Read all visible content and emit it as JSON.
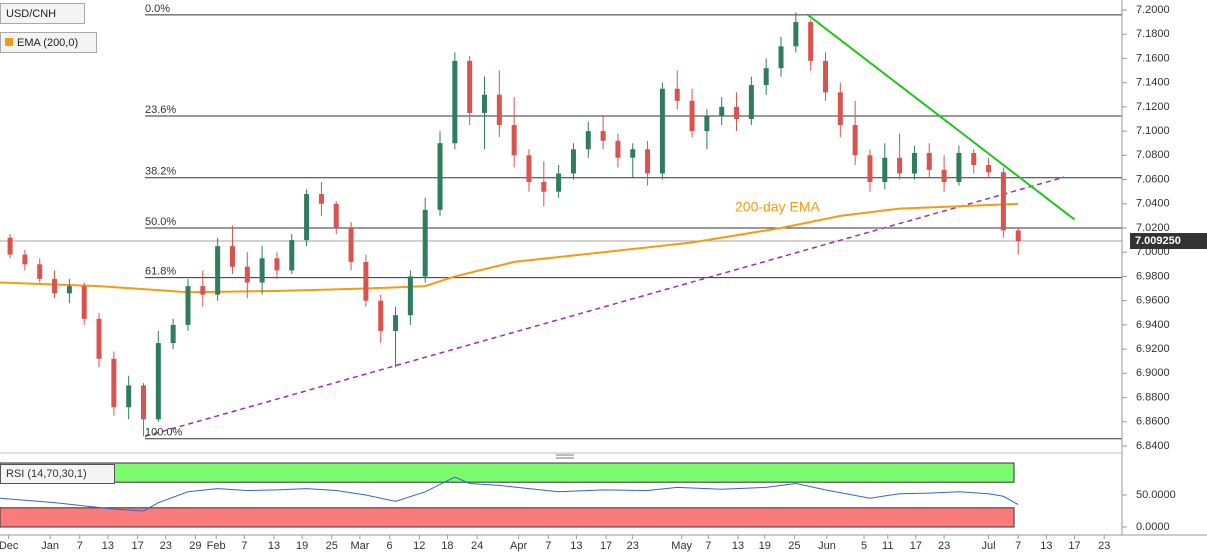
{
  "chart_data": {
    "type": "candlestick",
    "title": "USD/CNH",
    "indicator_label": "EMA (200,0)",
    "annotation": "200-day EMA",
    "up_color": "#2f7d5c",
    "down_color": "#d9534f",
    "xlim": [
      -0.68,
      75
    ],
    "ylim": [
      6.84,
      7.2
    ],
    "yticks": [
      {
        "value": 7.2,
        "label": "7.2000"
      },
      {
        "value": 7.18,
        "label": "7.1800"
      },
      {
        "value": 7.16,
        "label": "7.1600"
      },
      {
        "value": 7.14,
        "label": "7.1400"
      },
      {
        "value": 7.12,
        "label": "7.1200"
      },
      {
        "value": 7.1,
        "label": "7.1000"
      },
      {
        "value": 7.08,
        "label": "7.0800"
      },
      {
        "value": 7.06,
        "label": "7.0600"
      },
      {
        "value": 7.04,
        "label": "7.0400"
      },
      {
        "value": 7.02,
        "label": "7.0200"
      },
      {
        "value": 7.0,
        "label": "7.0000"
      },
      {
        "value": 6.98,
        "label": "6.9800"
      },
      {
        "value": 6.96,
        "label": "6.9600"
      },
      {
        "value": 6.94,
        "label": "6.9400"
      },
      {
        "value": 6.92,
        "label": "6.9200"
      },
      {
        "value": 6.9,
        "label": "6.9000"
      },
      {
        "value": 6.88,
        "label": "6.8800"
      },
      {
        "value": 6.86,
        "label": "6.8600"
      },
      {
        "value": 6.84,
        "label": "6.8400"
      }
    ],
    "xticks": [
      {
        "value": -0.1,
        "label": "Dec"
      },
      {
        "value": 2.7,
        "label": "Jan"
      },
      {
        "value": 4.7,
        "label": "7"
      },
      {
        "value": 6.6,
        "label": "13"
      },
      {
        "value": 8.6,
        "label": "17"
      },
      {
        "value": 10.5,
        "label": "23"
      },
      {
        "value": 12.5,
        "label": "29"
      },
      {
        "value": 13.9,
        "label": "Feb"
      },
      {
        "value": 15.8,
        "label": "7"
      },
      {
        "value": 17.8,
        "label": "13"
      },
      {
        "value": 19.7,
        "label": "19"
      },
      {
        "value": 21.7,
        "label": "25"
      },
      {
        "value": 23.6,
        "label": "Mar"
      },
      {
        "value": 25.6,
        "label": "6"
      },
      {
        "value": 27.6,
        "label": "12"
      },
      {
        "value": 29.5,
        "label": "18"
      },
      {
        "value": 31.5,
        "label": "24"
      },
      {
        "value": 34.3,
        "label": "Apr"
      },
      {
        "value": 36.3,
        "label": "7"
      },
      {
        "value": 38.2,
        "label": "13"
      },
      {
        "value": 40.2,
        "label": "17"
      },
      {
        "value": 42.0,
        "label": "23"
      },
      {
        "value": 45.3,
        "label": "May"
      },
      {
        "value": 47.1,
        "label": "7"
      },
      {
        "value": 49.1,
        "label": "13"
      },
      {
        "value": 50.9,
        "label": "19"
      },
      {
        "value": 52.9,
        "label": "25"
      },
      {
        "value": 55.1,
        "label": "Jun"
      },
      {
        "value": 57.6,
        "label": "5"
      },
      {
        "value": 59.2,
        "label": "11"
      },
      {
        "value": 61.1,
        "label": "17"
      },
      {
        "value": 63.0,
        "label": "23"
      },
      {
        "value": 66.0,
        "label": "Jul"
      },
      {
        "value": 68.0,
        "label": "7"
      },
      {
        "value": 69.9,
        "label": "13"
      },
      {
        "value": 71.8,
        "label": "17"
      },
      {
        "value": 73.8,
        "label": "23"
      }
    ],
    "candles": [
      [
        7.012,
        7.015,
        6.995,
        6.998
      ],
      [
        6.998,
        7.002,
        6.985,
        6.99
      ],
      [
        6.99,
        6.995,
        6.975,
        6.978
      ],
      [
        6.978,
        6.985,
        6.962,
        6.966
      ],
      [
        6.966,
        6.978,
        6.958,
        6.972
      ],
      [
        6.972,
        6.975,
        6.94,
        6.945
      ],
      [
        6.945,
        6.95,
        6.905,
        6.912
      ],
      [
        6.912,
        6.918,
        6.865,
        6.872
      ],
      [
        6.872,
        6.898,
        6.862,
        6.89
      ],
      [
        6.89,
        6.892,
        6.848,
        6.862
      ],
      [
        6.862,
        6.935,
        6.86,
        6.925
      ],
      [
        6.925,
        6.945,
        6.92,
        6.94
      ],
      [
        6.94,
        6.978,
        6.935,
        6.972
      ],
      [
        6.972,
        6.985,
        6.955,
        6.965
      ],
      [
        6.965,
        7.012,
        6.96,
        7.005
      ],
      [
        7.005,
        7.022,
        6.982,
        6.988
      ],
      [
        6.988,
        7.0,
        6.962,
        6.975
      ],
      [
        6.975,
        7.005,
        6.965,
        6.995
      ],
      [
        6.995,
        7.0,
        6.978,
        6.985
      ],
      [
        6.985,
        7.015,
        6.982,
        7.01
      ],
      [
        7.01,
        7.052,
        7.005,
        7.048
      ],
      [
        7.048,
        7.058,
        7.03,
        7.04
      ],
      [
        7.04,
        7.042,
        7.015,
        7.02
      ],
      [
        7.02,
        7.025,
        6.985,
        6.992
      ],
      [
        6.992,
        6.998,
        6.955,
        6.96
      ],
      [
        6.96,
        6.965,
        6.925,
        6.935
      ],
      [
        6.935,
        6.955,
        6.905,
        6.948
      ],
      [
        6.948,
        6.985,
        6.94,
        6.98
      ],
      [
        6.98,
        7.045,
        6.975,
        7.035
      ],
      [
        7.035,
        7.1,
        7.03,
        7.09
      ],
      [
        7.09,
        7.165,
        7.085,
        7.158
      ],
      [
        7.158,
        7.162,
        7.105,
        7.115
      ],
      [
        7.115,
        7.145,
        7.085,
        7.13
      ],
      [
        7.13,
        7.15,
        7.095,
        7.105
      ],
      [
        7.105,
        7.128,
        7.07,
        7.08
      ],
      [
        7.08,
        7.085,
        7.05,
        7.058
      ],
      [
        7.058,
        7.075,
        7.038,
        7.05
      ],
      [
        7.05,
        7.072,
        7.045,
        7.065
      ],
      [
        7.065,
        7.09,
        7.06,
        7.085
      ],
      [
        7.085,
        7.108,
        7.078,
        7.1
      ],
      [
        7.1,
        7.112,
        7.085,
        7.092
      ],
      [
        7.092,
        7.098,
        7.07,
        7.078
      ],
      [
        7.078,
        7.09,
        7.062,
        7.085
      ],
      [
        7.085,
        7.092,
        7.055,
        7.065
      ],
      [
        7.065,
        7.14,
        7.06,
        7.135
      ],
      [
        7.135,
        7.15,
        7.118,
        7.125
      ],
      [
        7.125,
        7.135,
        7.095,
        7.1
      ],
      [
        7.1,
        7.118,
        7.085,
        7.112
      ],
      [
        7.112,
        7.128,
        7.105,
        7.12
      ],
      [
        7.12,
        7.132,
        7.1,
        7.11
      ],
      [
        7.11,
        7.145,
        7.105,
        7.138
      ],
      [
        7.138,
        7.16,
        7.13,
        7.152
      ],
      [
        7.152,
        7.178,
        7.145,
        7.17
      ],
      [
        7.17,
        7.198,
        7.165,
        7.19
      ],
      [
        7.19,
        7.192,
        7.15,
        7.158
      ],
      [
        7.158,
        7.165,
        7.125,
        7.132
      ],
      [
        7.132,
        7.14,
        7.095,
        7.105
      ],
      [
        7.105,
        7.125,
        7.072,
        7.08
      ],
      [
        7.08,
        7.085,
        7.05,
        7.058
      ],
      [
        7.058,
        7.09,
        7.052,
        7.078
      ],
      [
        7.078,
        7.098,
        7.06,
        7.065
      ],
      [
        7.065,
        7.088,
        7.06,
        7.082
      ],
      [
        7.082,
        7.09,
        7.062,
        7.068
      ],
      [
        7.068,
        7.08,
        7.05,
        7.058
      ],
      [
        7.058,
        7.088,
        7.055,
        7.082
      ],
      [
        7.082,
        7.085,
        7.065,
        7.072
      ],
      [
        7.072,
        7.078,
        7.062,
        7.066
      ],
      [
        7.066,
        7.07,
        7.012,
        7.018
      ],
      [
        7.018,
        7.02,
        6.998,
        7.009
      ]
    ],
    "ema": {
      "color": "#f39c12",
      "x": [
        -0.68,
        6,
        12,
        18,
        24,
        28,
        30,
        34,
        40,
        46,
        52,
        56,
        60,
        64,
        68
      ],
      "values": [
        6.975,
        6.972,
        6.967,
        6.968,
        6.97,
        6.972,
        6.98,
        6.992,
        7.0,
        7.008,
        7.02,
        7.03,
        7.036,
        7.038,
        7.04
      ]
    },
    "fib_levels": [
      {
        "label": "0.0%",
        "value": 7.196
      },
      {
        "label": "23.6%",
        "value": 7.1125
      },
      {
        "label": "38.2%",
        "value": 7.0615
      },
      {
        "label": "50.0%",
        "value": 7.02
      },
      {
        "label": "61.8%",
        "value": 6.979
      },
      {
        "label": "100.0%",
        "value": 6.846
      }
    ],
    "fib_start": 9.1,
    "resistance_line": {
      "color": "#22c41a",
      "x": [
        53.8,
        71.8
      ],
      "values": [
        7.196,
        7.027
      ]
    },
    "support_line": {
      "color": "#9b2fae",
      "x": [
        9.1,
        71.1
      ],
      "values": [
        6.848,
        7.062
      ]
    },
    "last_price": {
      "value": 7.00925,
      "label": "7.009250"
    },
    "rsi": {
      "label": "RSI (14,70,30,1)",
      "color": "#3366cc",
      "ylim": [
        0,
        100
      ],
      "yticks": [
        {
          "value": 50,
          "label": "50.0000"
        },
        {
          "value": 0,
          "label": "0.0000"
        }
      ],
      "overbought": 70,
      "oversold": 30,
      "x": [
        -0.68,
        3,
        7,
        9,
        10,
        12,
        14,
        16,
        18,
        20,
        22,
        24,
        26,
        28,
        30,
        31,
        33,
        35,
        37,
        40,
        43,
        45,
        48,
        51,
        53,
        55,
        58,
        60,
        62,
        64,
        66,
        67,
        68
      ],
      "values": [
        45,
        38,
        28,
        25,
        38,
        55,
        60,
        57,
        58,
        60,
        57,
        50,
        40,
        55,
        78,
        68,
        65,
        60,
        55,
        58,
        57,
        62,
        59,
        62,
        68,
        58,
        45,
        52,
        53,
        55,
        52,
        48,
        35
      ]
    }
  }
}
